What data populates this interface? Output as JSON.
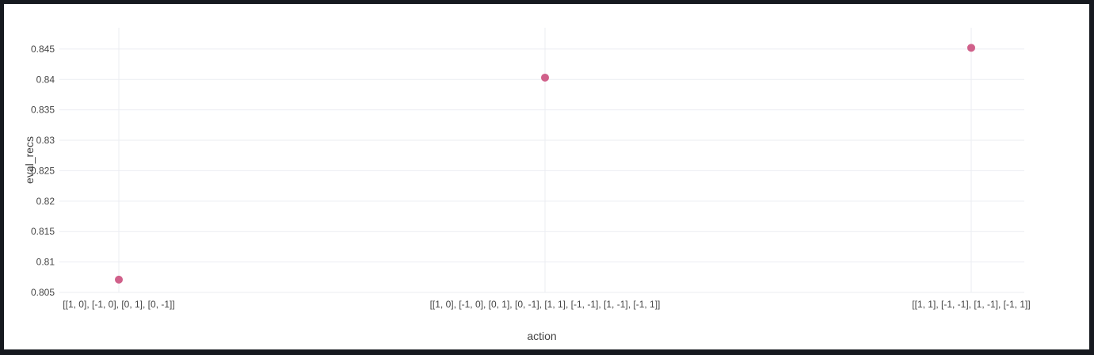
{
  "colors": {
    "marker": "#d0608a",
    "grid": "#ebedf2",
    "axis_text": "#444444",
    "frame": "#16191f",
    "plot_bg": "#ffffff"
  },
  "chart_data": {
    "type": "scatter",
    "title": "",
    "xlabel": "action",
    "ylabel": "eval_recs",
    "categories": [
      "[[1, 0], [-1, 0], [0, 1], [0, -1]]",
      "[[1, 0], [-1, 0], [0, 1], [0, -1], [1, 1], [-1, -1], [1, -1], [-1, 1]]",
      "[[1, 1], [-1, -1], [1, -1], [-1, 1]]"
    ],
    "values": [
      0.8071,
      0.8403,
      0.8452
    ],
    "yticks": [
      0.805,
      0.81,
      0.815,
      0.82,
      0.825,
      0.83,
      0.835,
      0.84,
      0.845
    ],
    "ytick_labels": [
      "0.805",
      "0.81",
      "0.815",
      "0.82",
      "0.825",
      "0.83",
      "0.835",
      "0.84",
      "0.845"
    ],
    "ylim": [
      0.805,
      0.8485
    ],
    "grid": true,
    "legend": "none"
  }
}
